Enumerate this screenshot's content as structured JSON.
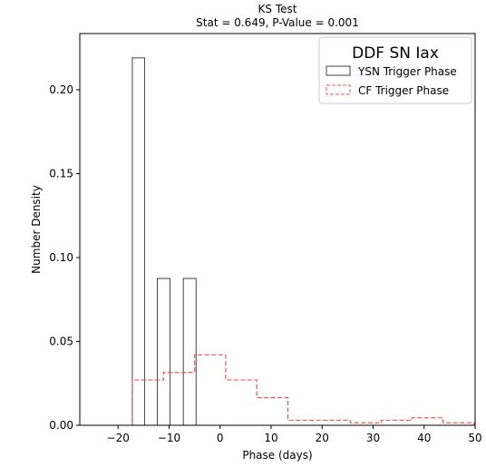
{
  "chart_data": {
    "type": "histogram",
    "title_lines": [
      "KS Test",
      "Stat = 0.649, P-Value = 0.001"
    ],
    "xlabel": "Phase (days)",
    "ylabel": "Number Density",
    "xlim": [
      -27.5,
      50
    ],
    "ylim": [
      0,
      0.2335
    ],
    "xticks": [
      -20,
      -10,
      0,
      10,
      20,
      30,
      40,
      50
    ],
    "xtick_labels": [
      "−20",
      "−10",
      "0",
      "10",
      "20",
      "30",
      "40",
      "50"
    ],
    "yticks": [
      0.0,
      0.05,
      0.1,
      0.15,
      0.2
    ],
    "ytick_labels": [
      "0.00",
      "0.05",
      "0.10",
      "0.15",
      "0.20"
    ],
    "legend": {
      "title": "DDF SN Iax",
      "position": "top-right",
      "entries": [
        "YSN Trigger Phase",
        "CF Trigger Phase"
      ]
    },
    "series": [
      {
        "name": "YSN Trigger Phase",
        "style": "solid-outline",
        "color": "#444444",
        "bins": [
          {
            "x0": -17.2,
            "x1": -14.8,
            "value": 0.219
          },
          {
            "x0": -14.8,
            "x1": -12.3,
            "value": 0.0
          },
          {
            "x0": -12.3,
            "x1": -9.8,
            "value": 0.0875
          },
          {
            "x0": -9.8,
            "x1": -7.2,
            "value": 0.0
          },
          {
            "x0": -7.2,
            "x1": -4.7,
            "value": 0.0875
          }
        ]
      },
      {
        "name": "CF Trigger Phase",
        "style": "dashed-step",
        "color": "#ff5050",
        "bins": [
          {
            "x0": -17.2,
            "x1": -11.1,
            "value": 0.027
          },
          {
            "x0": -11.1,
            "x1": -5.0,
            "value": 0.0315
          },
          {
            "x0": -5.0,
            "x1": 1.1,
            "value": 0.042
          },
          {
            "x0": 1.1,
            "x1": 7.2,
            "value": 0.027
          },
          {
            "x0": 7.2,
            "x1": 13.3,
            "value": 0.0165
          },
          {
            "x0": 13.3,
            "x1": 19.4,
            "value": 0.003
          },
          {
            "x0": 19.4,
            "x1": 25.5,
            "value": 0.003
          },
          {
            "x0": 25.5,
            "x1": 31.6,
            "value": 0.0015
          },
          {
            "x0": 31.6,
            "x1": 37.6,
            "value": 0.003
          },
          {
            "x0": 37.6,
            "x1": 43.7,
            "value": 0.0045
          },
          {
            "x0": 43.7,
            "x1": 49.8,
            "value": 0.0015
          }
        ]
      }
    ]
  }
}
